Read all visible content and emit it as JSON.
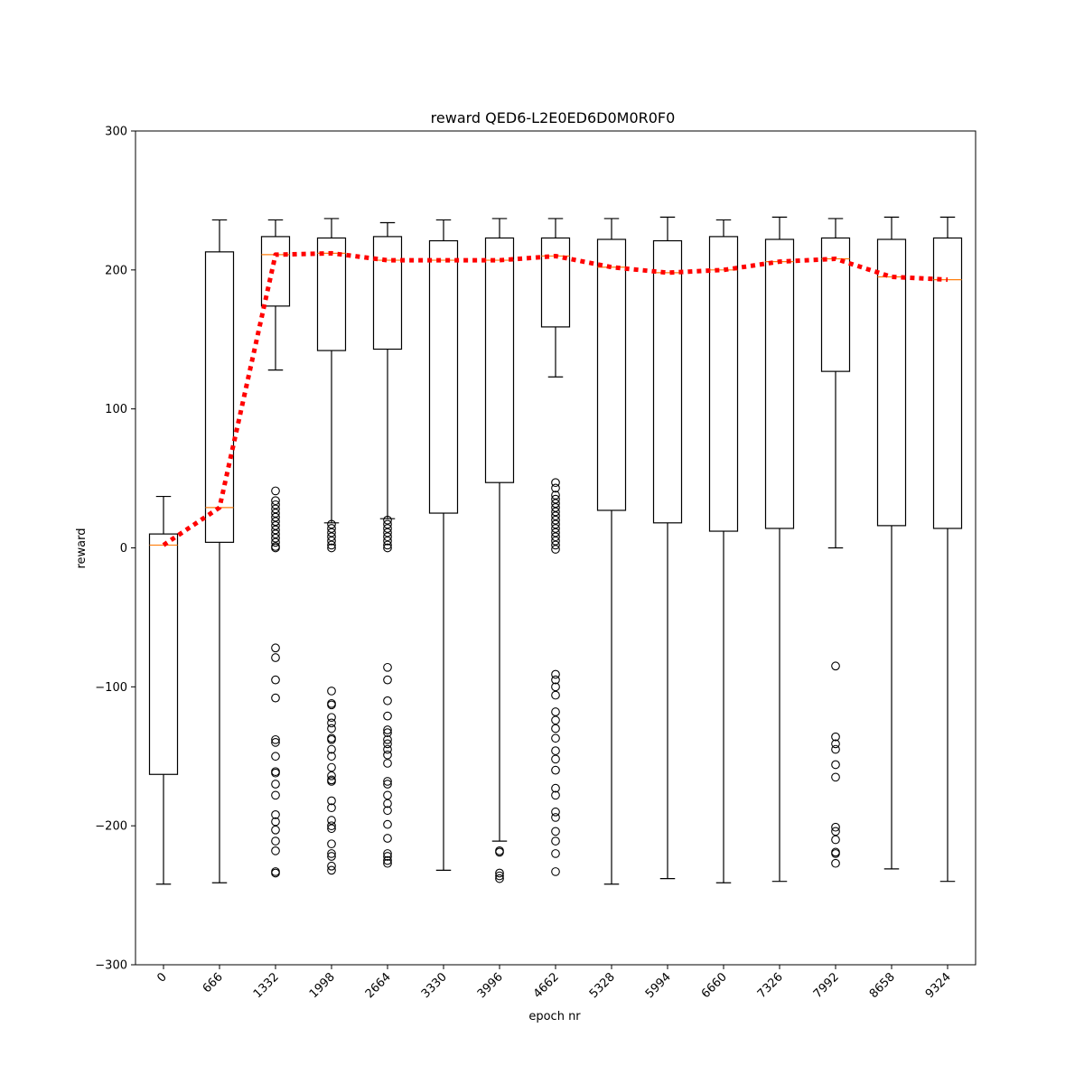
{
  "chart_data": {
    "type": "box",
    "title": "reward QED6-L2E0ED6D0M0R0F0",
    "xlabel": "epoch nr",
    "ylabel": "reward",
    "ylim": [
      -300,
      300
    ],
    "yticks": [
      -300,
      -200,
      -100,
      0,
      100,
      200,
      300
    ],
    "ytick_labels": [
      "−300",
      "−200",
      "−100",
      "0",
      "100",
      "200",
      "300"
    ],
    "categories": [
      "0",
      "666",
      "1332",
      "1998",
      "2664",
      "3330",
      "3996",
      "4662",
      "5328",
      "5994",
      "6660",
      "7326",
      "7992",
      "8658",
      "9324"
    ],
    "grid": false,
    "colors": {
      "box": "#000000",
      "median": "#ff7f0e",
      "mean_line": "#ff0000"
    },
    "boxes": [
      {
        "epoch": "0",
        "whislo": -242,
        "q1": -163,
        "med": 2,
        "q3": 10,
        "whishi": 37,
        "fliers": []
      },
      {
        "epoch": "666",
        "whislo": -241,
        "q1": 4,
        "med": 29,
        "q3": 213,
        "whishi": 236,
        "fliers": []
      },
      {
        "epoch": "1332",
        "whislo": 128,
        "q1": 174,
        "med": 211,
        "q3": 224,
        "whishi": 236,
        "fliers": [
          41,
          34,
          31,
          28,
          25,
          22,
          19,
          16,
          13,
          10,
          7,
          4,
          1,
          0,
          -72,
          -79,
          -95,
          -108,
          -138,
          -140,
          -150,
          -161,
          -162,
          -170,
          -178,
          -192,
          -197,
          -203,
          -211,
          -218,
          -233,
          -234
        ]
      },
      {
        "epoch": "1998",
        "whislo": 18,
        "q1": 142,
        "med": 212,
        "q3": 223,
        "whishi": 237,
        "fliers": [
          17,
          14,
          11,
          8,
          5,
          2,
          0,
          -103,
          -112,
          -113,
          -122,
          -126,
          -130,
          -137,
          -138,
          -145,
          -150,
          -158,
          -164,
          -167,
          -168,
          -182,
          -187,
          -196,
          -200,
          -202,
          -213,
          -220,
          -222,
          -229,
          -232
        ]
      },
      {
        "epoch": "2664",
        "whislo": 21,
        "q1": 143,
        "med": 207,
        "q3": 224,
        "whishi": 234,
        "fliers": [
          20,
          17,
          14,
          11,
          8,
          5,
          2,
          0,
          -86,
          -95,
          -110,
          -121,
          -131,
          -133,
          -138,
          -141,
          -145,
          -149,
          -155,
          -168,
          -170,
          -178,
          -184,
          -189,
          -199,
          -209,
          -220,
          -222,
          -225,
          -227
        ]
      },
      {
        "epoch": "3330",
        "whislo": -232,
        "q1": 25,
        "med": 207,
        "q3": 221,
        "whishi": 236,
        "fliers": []
      },
      {
        "epoch": "3996",
        "whislo": -211,
        "q1": 47,
        "med": 207,
        "q3": 223,
        "whishi": 237,
        "fliers": [
          -218,
          -219,
          -234,
          -236,
          -238
        ]
      },
      {
        "epoch": "4662",
        "whislo": 123,
        "q1": 159,
        "med": 210,
        "q3": 223,
        "whishi": 237,
        "fliers": [
          47,
          43,
          38,
          35,
          32,
          29,
          26,
          23,
          20,
          17,
          14,
          11,
          8,
          5,
          2,
          -1,
          -91,
          -95,
          -100,
          -106,
          -118,
          -124,
          -130,
          -137,
          -146,
          -152,
          -160,
          -173,
          -178,
          -190,
          -194,
          -204,
          -211,
          -220,
          -233
        ]
      },
      {
        "epoch": "5328",
        "whislo": -242,
        "q1": 27,
        "med": 202,
        "q3": 222,
        "whishi": 237,
        "fliers": []
      },
      {
        "epoch": "5994",
        "whislo": -238,
        "q1": 18,
        "med": 198,
        "q3": 221,
        "whishi": 238,
        "fliers": []
      },
      {
        "epoch": "6660",
        "whislo": -241,
        "q1": 12,
        "med": 200,
        "q3": 224,
        "whishi": 236,
        "fliers": []
      },
      {
        "epoch": "7326",
        "whislo": -240,
        "q1": 14,
        "med": 206,
        "q3": 222,
        "whishi": 238,
        "fliers": []
      },
      {
        "epoch": "7992",
        "whislo": 0,
        "q1": 127,
        "med": 208,
        "q3": 223,
        "whishi": 237,
        "fliers": [
          -85,
          -136,
          -141,
          -145,
          -156,
          -165,
          -201,
          -204,
          -210,
          -219,
          -220,
          -227
        ]
      },
      {
        "epoch": "8658",
        "whislo": -231,
        "q1": 16,
        "med": 195,
        "q3": 222,
        "whishi": 238,
        "fliers": []
      },
      {
        "epoch": "9324",
        "whislo": -240,
        "q1": 14,
        "med": 193,
        "q3": 223,
        "whishi": 238,
        "fliers": []
      }
    ],
    "mean_line": {
      "style": "dotted",
      "values": [
        2,
        29,
        211,
        212,
        207,
        207,
        207,
        210,
        202,
        198,
        200,
        206,
        208,
        195,
        193
      ]
    }
  }
}
